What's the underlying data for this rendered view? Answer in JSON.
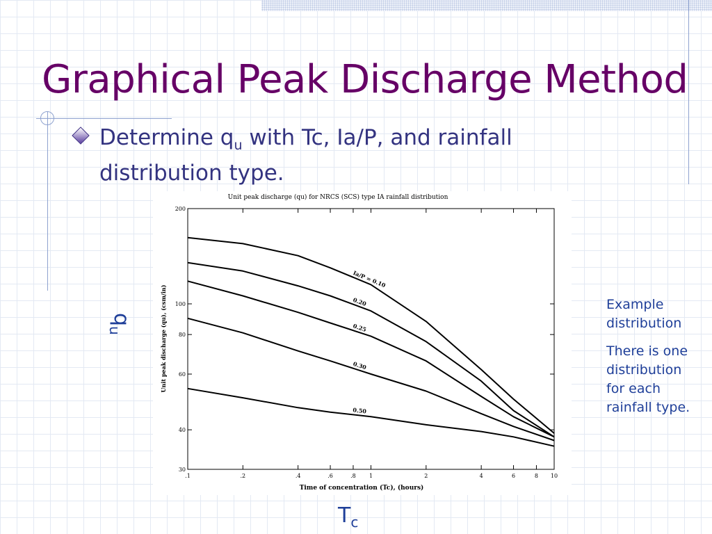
{
  "slide": {
    "title": "Graphical Peak Discharge Method",
    "bullet": [
      "Determine q",
      "u",
      " with Tc, Ia/P, and rainfall distribution type."
    ],
    "y_side_label": [
      "q",
      "u"
    ],
    "x_side_label": [
      "T",
      "c"
    ],
    "notes": [
      "Example distribution",
      "There is one distribution for each rainfall type."
    ]
  },
  "chart_data": {
    "type": "line",
    "title": "Unit peak discharge (qu) for NRCS (SCS) type IA rainfall distribution",
    "x_label": "Time of concentration (Tc), (hours)",
    "y_label": "Unit peak discharge (qu), (csm/in)",
    "x": [
      0.1,
      0.2,
      0.4,
      0.6,
      1,
      2,
      4,
      6,
      10
    ],
    "series": [
      {
        "name": "Ia/P = 0.10",
        "color": "#000000",
        "values": [
          162,
          155,
          142,
          130,
          115,
          88,
          62,
          50,
          39
        ]
      },
      {
        "name": "0.20",
        "color": "#000000",
        "values": [
          135,
          127,
          114,
          106,
          95,
          76,
          57,
          46,
          38
        ]
      },
      {
        "name": "0.25",
        "color": "#000000",
        "values": [
          118,
          106,
          94,
          87,
          79,
          66,
          51,
          44,
          38
        ]
      },
      {
        "name": "0.30",
        "color": "#000000",
        "values": [
          90,
          81,
          71,
          66,
          60,
          53,
          45,
          41,
          37
        ]
      },
      {
        "name": "0.50",
        "color": "#000000",
        "values": [
          54,
          50.5,
          47,
          45.5,
          44,
          41.5,
          39.5,
          38,
          35.5
        ]
      }
    ],
    "xlim": [
      0.1,
      10
    ],
    "ylim": [
      30,
      200
    ],
    "xscale": "log",
    "yscale": "log",
    "xticks": [
      {
        "value": 0.1,
        "label": ".1"
      },
      {
        "value": 0.2,
        "label": ".2"
      },
      {
        "value": 0.4,
        "label": ".4"
      },
      {
        "value": 0.6,
        "label": ".6"
      },
      {
        "value": 0.8,
        "label": ".8"
      },
      1,
      2,
      4,
      6,
      8,
      10
    ],
    "yticks": [
      30,
      40,
      60,
      80,
      100,
      200
    ]
  }
}
